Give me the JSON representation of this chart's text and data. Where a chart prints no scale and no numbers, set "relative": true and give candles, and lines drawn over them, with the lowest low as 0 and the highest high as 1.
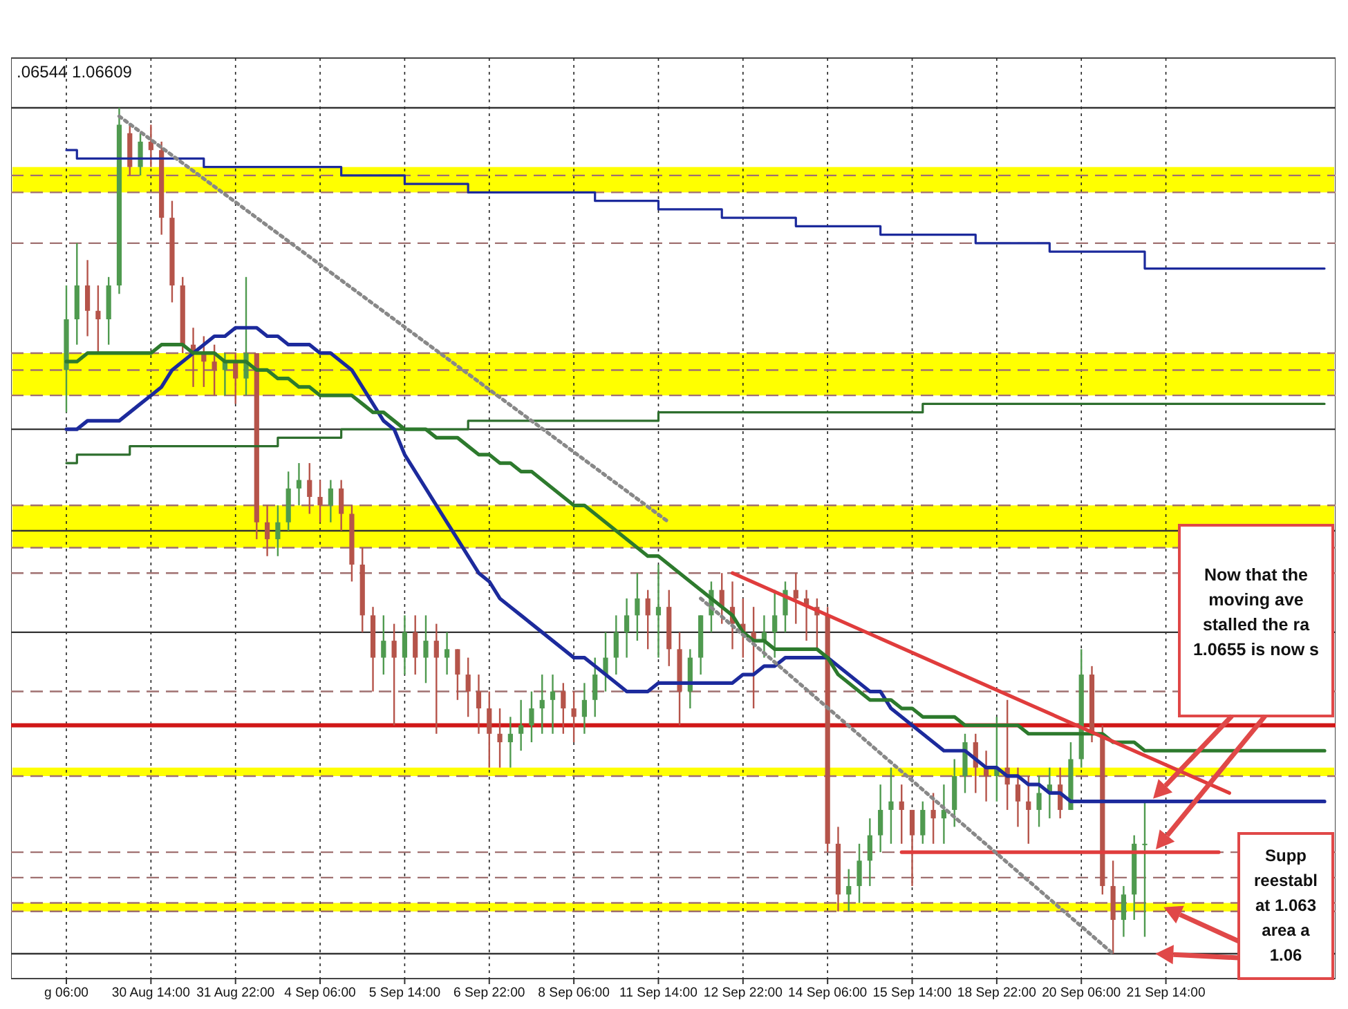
{
  "chart_data": {
    "type": "candlestick",
    "relative": true,
    "grid": "x",
    "categories": [
      "g 06:00",
      null,
      null,
      null,
      null,
      null,
      null,
      null,
      "30 Aug 14:00",
      null,
      null,
      null,
      null,
      null,
      null,
      null,
      "31 Aug 22:00",
      null,
      null,
      null,
      null,
      null,
      null,
      null,
      "4 Sep 06:00",
      null,
      null,
      null,
      null,
      null,
      null,
      null,
      "5 Sep 14:00",
      null,
      null,
      null,
      null,
      null,
      null,
      null,
      "6 Sep 22:00",
      null,
      null,
      null,
      null,
      null,
      null,
      null,
      "8 Sep 06:00",
      null,
      null,
      null,
      null,
      null,
      null,
      null,
      "11 Sep 14:00",
      null,
      null,
      null,
      null,
      null,
      null,
      null,
      "12 Sep 22:00",
      null,
      null,
      null,
      null,
      null,
      null,
      null,
      "14 Sep 06:00",
      null,
      null,
      null,
      null,
      null,
      null,
      null,
      "15 Sep 14:00",
      null,
      null,
      null,
      null,
      null,
      null,
      null,
      "18 Sep 22:00",
      null,
      null,
      null,
      null,
      null,
      null,
      null,
      "20 Sep 06:00",
      null,
      null,
      null,
      null,
      null,
      null,
      null,
      "21 Sep 14:00",
      null,
      null,
      null,
      null,
      null,
      null,
      null,
      null,
      null,
      null,
      null,
      null,
      null,
      null,
      null
    ],
    "ohlc": [
      [
        0.69,
        0.79,
        0.64,
        0.75
      ],
      [
        0.75,
        0.84,
        0.72,
        0.79
      ],
      [
        0.79,
        0.82,
        0.73,
        0.76
      ],
      [
        0.76,
        0.79,
        0.71,
        0.75
      ],
      [
        0.75,
        0.8,
        0.72,
        0.79
      ],
      [
        0.79,
        1,
        0.78,
        0.98
      ],
      [
        0.97,
        0.98,
        0.92,
        0.93
      ],
      [
        0.93,
        0.97,
        0.92,
        0.96
      ],
      [
        0.96,
        0.98,
        0.93,
        0.95
      ],
      [
        0.95,
        0.96,
        0.85,
        0.87
      ],
      [
        0.87,
        0.89,
        0.77,
        0.79
      ],
      [
        0.79,
        0.8,
        0.71,
        0.72
      ],
      [
        0.72,
        0.74,
        0.67,
        0.71
      ],
      [
        0.71,
        0.73,
        0.67,
        0.7
      ],
      [
        0.7,
        0.72,
        0.66,
        0.69
      ],
      [
        0.69,
        0.71,
        0.66,
        0.7
      ],
      [
        0.7,
        0.71,
        0.65,
        0.68
      ],
      [
        0.68,
        0.8,
        0.66,
        0.71
      ],
      [
        0.71,
        0.71,
        0.49,
        0.51
      ],
      [
        0.51,
        0.53,
        0.47,
        0.49
      ],
      [
        0.49,
        0.53,
        0.47,
        0.51
      ],
      [
        0.51,
        0.57,
        0.5,
        0.55
      ],
      [
        0.55,
        0.58,
        0.53,
        0.56
      ],
      [
        0.56,
        0.58,
        0.52,
        0.54
      ],
      [
        0.54,
        0.56,
        0.51,
        0.53
      ],
      [
        0.53,
        0.56,
        0.51,
        0.55
      ],
      [
        0.55,
        0.56,
        0.5,
        0.52
      ],
      [
        0.52,
        0.53,
        0.44,
        0.46
      ],
      [
        0.46,
        0.48,
        0.38,
        0.4
      ],
      [
        0.4,
        0.41,
        0.31,
        0.35
      ],
      [
        0.35,
        0.4,
        0.33,
        0.37
      ],
      [
        0.37,
        0.39,
        0.27,
        0.35
      ],
      [
        0.35,
        0.4,
        0.33,
        0.38
      ],
      [
        0.38,
        0.4,
        0.33,
        0.35
      ],
      [
        0.35,
        0.4,
        0.32,
        0.37
      ],
      [
        0.37,
        0.39,
        0.26,
        0.35
      ],
      [
        0.35,
        0.38,
        0.33,
        0.36
      ],
      [
        0.36,
        0.36,
        0.3,
        0.33
      ],
      [
        0.33,
        0.35,
        0.28,
        0.31
      ],
      [
        0.31,
        0.33,
        0.26,
        0.29
      ],
      [
        0.29,
        0.31,
        0.22,
        0.26
      ],
      [
        0.26,
        0.29,
        0.22,
        0.25
      ],
      [
        0.25,
        0.28,
        0.22,
        0.26
      ],
      [
        0.26,
        0.3,
        0.24,
        0.27
      ],
      [
        0.27,
        0.31,
        0.25,
        0.29
      ],
      [
        0.29,
        0.33,
        0.26,
        0.3
      ],
      [
        0.3,
        0.33,
        0.26,
        0.31
      ],
      [
        0.31,
        0.32,
        0.26,
        0.29
      ],
      [
        0.29,
        0.31,
        0.25,
        0.28
      ],
      [
        0.28,
        0.32,
        0.26,
        0.3
      ],
      [
        0.3,
        0.35,
        0.28,
        0.33
      ],
      [
        0.33,
        0.38,
        0.31,
        0.35
      ],
      [
        0.35,
        0.4,
        0.33,
        0.38
      ],
      [
        0.38,
        0.42,
        0.35,
        0.4
      ],
      [
        0.4,
        0.45,
        0.37,
        0.42
      ],
      [
        0.42,
        0.43,
        0.36,
        0.4
      ],
      [
        0.4,
        0.46,
        0.35,
        0.41
      ],
      [
        0.41,
        0.43,
        0.34,
        0.36
      ],
      [
        0.36,
        0.38,
        0.27,
        0.31
      ],
      [
        0.31,
        0.36,
        0.29,
        0.35
      ],
      [
        0.35,
        0.4,
        0.33,
        0.4
      ],
      [
        0.4,
        0.44,
        0.38,
        0.43
      ],
      [
        0.43,
        0.45,
        0.39,
        0.41
      ],
      [
        0.41,
        0.44,
        0.36,
        0.39
      ],
      [
        0.39,
        0.42,
        0.35,
        0.38
      ],
      [
        0.38,
        0.41,
        0.29,
        0.37
      ],
      [
        0.37,
        0.4,
        0.35,
        0.38
      ],
      [
        0.38,
        0.43,
        0.35,
        0.4
      ],
      [
        0.4,
        0.44,
        0.38,
        0.43
      ],
      [
        0.43,
        0.45,
        0.39,
        0.42
      ],
      [
        0.42,
        0.43,
        0.37,
        0.41
      ],
      [
        0.41,
        0.42,
        0.36,
        0.4
      ],
      [
        0.4,
        0.41,
        0.12,
        0.13
      ],
      [
        0.13,
        0.15,
        0.05,
        0.07
      ],
      [
        0.07,
        0.1,
        0.05,
        0.08
      ],
      [
        0.08,
        0.13,
        0.06,
        0.11
      ],
      [
        0.11,
        0.16,
        0.08,
        0.14
      ],
      [
        0.14,
        0.2,
        0.12,
        0.17
      ],
      [
        0.17,
        0.22,
        0.13,
        0.18
      ],
      [
        0.18,
        0.2,
        0.13,
        0.17
      ],
      [
        0.17,
        0.17,
        0.08,
        0.14
      ],
      [
        0.14,
        0.18,
        0.13,
        0.17
      ],
      [
        0.17,
        0.19,
        0.13,
        0.16
      ],
      [
        0.16,
        0.2,
        0.13,
        0.17
      ],
      [
        0.17,
        0.23,
        0.15,
        0.21
      ],
      [
        0.21,
        0.26,
        0.19,
        0.25
      ],
      [
        0.25,
        0.26,
        0.19,
        0.22
      ],
      [
        0.22,
        0.24,
        0.18,
        0.21
      ],
      [
        0.21,
        0.28,
        0.18,
        0.22
      ],
      [
        0.22,
        0.3,
        0.17,
        0.2
      ],
      [
        0.2,
        0.22,
        0.15,
        0.18
      ],
      [
        0.18,
        0.21,
        0.13,
        0.17
      ],
      [
        0.17,
        0.21,
        0.15,
        0.19
      ],
      [
        0.19,
        0.22,
        0.16,
        0.2
      ],
      [
        0.2,
        0.22,
        0.16,
        0.17
      ],
      [
        0.17,
        0.25,
        0.17,
        0.23
      ],
      [
        0.23,
        0.36,
        0.22,
        0.33
      ],
      [
        0.33,
        0.34,
        0.25,
        0.26
      ],
      [
        0.26,
        0.27,
        0.07,
        0.08
      ],
      [
        0.08,
        0.11,
        0,
        0.04
      ],
      [
        0.04,
        0.08,
        0.02,
        0.07
      ],
      [
        0.07,
        0.14,
        0.04,
        0.13
      ],
      [
        0.13,
        0.18,
        0.02,
        0.13
      ],
      null,
      null,
      null,
      null,
      null,
      null,
      null,
      null,
      null,
      null,
      null,
      null,
      null,
      null,
      null,
      null,
      null
    ],
    "colors": [
      "#4f9a4f",
      "#4f9a4f",
      "#b5544a",
      "#b5544a",
      "#4f9a4f",
      "#4f9a4f",
      "#b5544a",
      "#4f9a4f",
      "#b5544a",
      "#b5544a",
      "#b5544a",
      "#b5544a",
      "#b5544a",
      "#b5544a",
      "#b5544a",
      "#4f9a4f",
      "#b5544a",
      "#4f9a4f",
      "#b5544a",
      "#b5544a",
      "#4f9a4f",
      "#4f9a4f",
      "#4f9a4f",
      "#b5544a",
      "#b5544a",
      "#4f9a4f",
      "#b5544a",
      "#b5544a",
      "#b5544a",
      "#b5544a",
      "#4f9a4f",
      "#b5544a",
      "#4f9a4f",
      "#b5544a",
      "#4f9a4f",
      "#b5544a",
      "#4f9a4f",
      "#b5544a",
      "#b5544a",
      "#b5544a",
      "#b5544a",
      "#b5544a",
      "#4f9a4f",
      "#4f9a4f",
      "#4f9a4f",
      "#4f9a4f",
      "#4f9a4f",
      "#b5544a",
      "#b5544a",
      "#4f9a4f",
      "#4f9a4f",
      "#4f9a4f",
      "#4f9a4f",
      "#4f9a4f",
      "#4f9a4f",
      "#b5544a",
      "#4f9a4f",
      "#b5544a",
      "#b5544a",
      "#4f9a4f",
      "#4f9a4f",
      "#4f9a4f",
      "#b5544a",
      "#b5544a",
      "#b5544a",
      "#b5544a",
      "#4f9a4f",
      "#4f9a4f",
      "#4f9a4f",
      "#b5544a",
      "#b5544a",
      "#b5544a",
      "#b5544a",
      "#b5544a",
      "#4f9a4f",
      "#4f9a4f",
      "#4f9a4f",
      "#4f9a4f",
      "#4f9a4f",
      "#b5544a",
      "#b5544a",
      "#4f9a4f",
      "#b5544a",
      "#4f9a4f",
      "#4f9a4f",
      "#4f9a4f",
      "#b5544a",
      "#b5544a",
      "#4f9a4f",
      "#b5544a",
      "#b5544a",
      "#b5544a",
      "#4f9a4f",
      "#4f9a4f",
      "#b5544a",
      "#4f9a4f",
      "#4f9a4f",
      "#b5544a",
      "#b5544a",
      "#b5544a",
      "#4f9a4f",
      "#4f9a4f",
      "#4f9a4f",
      null,
      null,
      null,
      null,
      null,
      null,
      null,
      null,
      null,
      null,
      null,
      null,
      null,
      null,
      null,
      null,
      null
    ],
    "series": [
      {
        "type": "step",
        "color": "#1c2a9c",
        "values": [
          0.95,
          0.94,
          0.94,
          0.94,
          0.94,
          0.94,
          0.94,
          0.94,
          0.94,
          0.94,
          0.94,
          0.94,
          0.94,
          0.93,
          0.93,
          0.93,
          0.93,
          0.93,
          0.93,
          0.93,
          0.93,
          0.93,
          0.93,
          0.93,
          0.93,
          0.93,
          0.92,
          0.92,
          0.92,
          0.92,
          0.92,
          0.92,
          0.91,
          0.91,
          0.91,
          0.91,
          0.91,
          0.91,
          0.9,
          0.9,
          0.9,
          0.9,
          0.9,
          0.9,
          0.9,
          0.9,
          0.9,
          0.9,
          0.9,
          0.9,
          0.89,
          0.89,
          0.89,
          0.89,
          0.89,
          0.89,
          0.88,
          0.88,
          0.88,
          0.88,
          0.88,
          0.88,
          0.87,
          0.87,
          0.87,
          0.87,
          0.87,
          0.87,
          0.87,
          0.86,
          0.86,
          0.86,
          0.86,
          0.86,
          0.86,
          0.86,
          0.86,
          0.85,
          0.85,
          0.85,
          0.85,
          0.85,
          0.85,
          0.85,
          0.85,
          0.85,
          0.84,
          0.84,
          0.84,
          0.84,
          0.84,
          0.84,
          0.84,
          0.83,
          0.83,
          0.83,
          0.83,
          0.83,
          0.83,
          0.83,
          0.83,
          0.83,
          0.81,
          0.81,
          0.81,
          0.81,
          0.81,
          0.81,
          0.81,
          0.81,
          0.81,
          0.81,
          0.81,
          0.81,
          0.81,
          0.81,
          0.81,
          0.81,
          0.81,
          0.81
        ]
      },
      {
        "type": "step",
        "color": "#2d6e2d",
        "values": [
          0.58,
          0.59,
          0.59,
          0.59,
          0.59,
          0.59,
          0.6,
          0.6,
          0.6,
          0.6,
          0.6,
          0.6,
          0.6,
          0.6,
          0.6,
          0.6,
          0.6,
          0.6,
          0.6,
          0.6,
          0.61,
          0.61,
          0.61,
          0.61,
          0.61,
          0.61,
          0.62,
          0.62,
          0.62,
          0.62,
          0.62,
          0.62,
          0.62,
          0.62,
          0.62,
          0.62,
          0.62,
          0.62,
          0.63,
          0.63,
          0.63,
          0.63,
          0.63,
          0.63,
          0.63,
          0.63,
          0.63,
          0.63,
          0.63,
          0.63,
          0.63,
          0.63,
          0.63,
          0.63,
          0.63,
          0.63,
          0.64,
          0.64,
          0.64,
          0.64,
          0.64,
          0.64,
          0.64,
          0.64,
          0.64,
          0.64,
          0.64,
          0.64,
          0.64,
          0.64,
          0.64,
          0.64,
          0.64,
          0.64,
          0.64,
          0.64,
          0.64,
          0.64,
          0.64,
          0.64,
          0.64,
          0.65,
          0.65,
          0.65,
          0.65,
          0.65,
          0.65,
          0.65,
          0.65,
          0.65,
          0.65,
          0.65,
          0.65,
          0.65,
          0.65,
          0.65,
          0.65,
          0.65,
          0.65,
          0.65,
          0.65,
          0.65,
          0.65,
          0.65,
          0.65,
          0.65,
          0.65,
          0.65,
          0.65,
          0.65,
          0.65,
          0.65,
          0.65,
          0.65,
          0.65,
          0.65,
          0.65,
          0.65,
          0.65,
          0.65
        ]
      },
      {
        "type": "line",
        "color": "#1c2a9c",
        "values": [
          0.62,
          0.62,
          0.63,
          0.63,
          0.63,
          0.63,
          0.64,
          0.65,
          0.66,
          0.67,
          0.69,
          0.7,
          0.71,
          0.72,
          0.73,
          0.73,
          0.74,
          0.74,
          0.74,
          0.73,
          0.73,
          0.72,
          0.72,
          0.72,
          0.71,
          0.71,
          0.7,
          0.69,
          0.67,
          0.65,
          0.63,
          0.62,
          0.59,
          0.57,
          0.55,
          0.53,
          0.51,
          0.49,
          0.47,
          0.45,
          0.44,
          0.42,
          0.41,
          0.4,
          0.39,
          0.38,
          0.37,
          0.36,
          0.35,
          0.35,
          0.34,
          0.33,
          0.32,
          0.31,
          0.31,
          0.31,
          0.32,
          0.32,
          0.32,
          0.32,
          0.32,
          0.32,
          0.32,
          0.32,
          0.33,
          0.33,
          0.34,
          0.34,
          0.35,
          0.35,
          0.35,
          0.35,
          0.35,
          0.34,
          0.33,
          0.32,
          0.31,
          0.31,
          0.29,
          0.28,
          0.27,
          0.26,
          0.25,
          0.24,
          0.24,
          0.24,
          0.23,
          0.22,
          0.22,
          0.21,
          0.21,
          0.2,
          0.2,
          0.19,
          0.19,
          0.18,
          0.18,
          0.18,
          0.18,
          0.18,
          0.18,
          0.18,
          0.18,
          0.18,
          0.18,
          0.18,
          0.18,
          0.18,
          0.18,
          0.18,
          0.18,
          0.18,
          0.18,
          0.18,
          0.18,
          0.18,
          0.18,
          0.18,
          0.18,
          0.18
        ]
      },
      {
        "type": "line",
        "color": "#2d7a2d",
        "values": [
          0.7,
          0.7,
          0.71,
          0.71,
          0.71,
          0.71,
          0.71,
          0.71,
          0.71,
          0.72,
          0.72,
          0.72,
          0.71,
          0.71,
          0.71,
          0.7,
          0.7,
          0.7,
          0.69,
          0.69,
          0.68,
          0.68,
          0.67,
          0.67,
          0.66,
          0.66,
          0.66,
          0.66,
          0.65,
          0.64,
          0.64,
          0.63,
          0.62,
          0.62,
          0.62,
          0.61,
          0.61,
          0.61,
          0.6,
          0.59,
          0.59,
          0.58,
          0.58,
          0.57,
          0.57,
          0.56,
          0.55,
          0.54,
          0.53,
          0.53,
          0.52,
          0.51,
          0.5,
          0.49,
          0.48,
          0.47,
          0.47,
          0.46,
          0.45,
          0.44,
          0.43,
          0.42,
          0.41,
          0.4,
          0.38,
          0.37,
          0.37,
          0.36,
          0.36,
          0.36,
          0.36,
          0.36,
          0.35,
          0.33,
          0.32,
          0.31,
          0.3,
          0.3,
          0.3,
          0.29,
          0.29,
          0.28,
          0.28,
          0.28,
          0.28,
          0.27,
          0.27,
          0.27,
          0.27,
          0.27,
          0.27,
          0.26,
          0.26,
          0.26,
          0.26,
          0.26,
          0.26,
          0.26,
          0.26,
          0.25,
          0.25,
          0.25,
          0.24,
          0.24,
          0.24,
          0.24,
          0.24,
          0.24,
          0.24,
          0.24,
          0.24,
          0.24,
          0.24,
          0.24,
          0.24,
          0.24,
          0.24,
          0.24,
          0.24,
          0.24
        ]
      },
      {
        "type": "line",
        "color": "#e03c3c",
        "values": [
          null,
          null,
          null,
          null,
          null,
          null,
          null,
          null,
          null,
          null,
          null,
          null,
          null,
          null,
          null,
          null,
          null,
          null,
          null,
          null,
          null,
          null,
          null,
          null,
          null,
          null,
          null,
          null,
          null,
          null,
          null,
          null,
          null,
          null,
          null,
          null,
          null,
          null,
          null,
          null,
          null,
          null,
          null,
          null,
          null,
          null,
          null,
          null,
          null,
          null,
          null,
          null,
          null,
          null,
          null,
          null,
          null,
          null,
          null,
          null,
          null,
          null,
          null,
          0.45,
          null,
          null,
          null,
          null,
          null,
          null,
          null,
          null,
          null,
          null,
          null,
          null,
          null,
          null,
          null,
          null,
          null,
          null,
          null,
          null,
          null,
          null,
          null,
          null,
          null,
          null,
          null,
          null,
          null,
          null,
          null,
          null,
          null,
          null,
          null,
          null,
          null,
          null,
          null,
          null,
          null,
          null,
          null,
          null,
          null,
          null,
          0.19,
          null,
          null,
          null,
          null,
          null,
          null,
          null,
          null,
          null
        ]
      },
      {
        "type": "line",
        "color": "#e03c3c",
        "values": [
          null,
          null,
          null,
          null,
          null,
          null,
          null,
          null,
          null,
          null,
          null,
          null,
          null,
          null,
          null,
          null,
          null,
          null,
          null,
          null,
          null,
          null,
          null,
          null,
          null,
          null,
          null,
          null,
          null,
          null,
          null,
          null,
          null,
          null,
          null,
          null,
          null,
          null,
          null,
          null,
          null,
          null,
          null,
          null,
          null,
          null,
          null,
          null,
          null,
          null,
          null,
          null,
          null,
          null,
          null,
          null,
          null,
          null,
          null,
          null,
          null,
          null,
          null,
          null,
          null,
          null,
          null,
          null,
          null,
          null,
          null,
          null,
          null,
          null,
          null,
          null,
          null,
          null,
          null,
          0.12,
          null,
          null,
          null,
          null,
          null,
          null,
          null,
          null,
          null,
          null,
          null,
          null,
          null,
          null,
          null,
          null,
          null,
          null,
          null,
          null,
          null,
          null,
          null,
          null,
          null,
          null,
          null,
          null,
          null,
          0.12,
          null,
          null,
          null,
          null,
          null,
          null,
          null,
          null,
          null,
          null
        ]
      },
      {
        "type": "line",
        "color": "#888888",
        "line_style": "dotted",
        "values": [
          null,
          null,
          null,
          null,
          null,
          0.99,
          null,
          null,
          null,
          null,
          null,
          null,
          null,
          null,
          null,
          null,
          null,
          null,
          null,
          null,
          null,
          null,
          null,
          null,
          null,
          null,
          null,
          null,
          null,
          null,
          null,
          null,
          null,
          null,
          null,
          null,
          null,
          null,
          null,
          null,
          null,
          null,
          null,
          null,
          null,
          null,
          null,
          null,
          null,
          null,
          null,
          null,
          null,
          null,
          null,
          null,
          null,
          0.51,
          null,
          null,
          null,
          null,
          null,
          null,
          null,
          null,
          null,
          null,
          null,
          null,
          null,
          null,
          null,
          null,
          null,
          null,
          null,
          null,
          null,
          null,
          null,
          null,
          null,
          null,
          null,
          null,
          null,
          null,
          null,
          null,
          null,
          null,
          null,
          null,
          null,
          null,
          null,
          null,
          null,
          null,
          null,
          null,
          null,
          null,
          null,
          null,
          null,
          null,
          null,
          null,
          null,
          null,
          null,
          null,
          null,
          null,
          null,
          null,
          null,
          null
        ]
      },
      {
        "type": "line",
        "color": "#888888",
        "line_style": "dotted",
        "values": [
          null,
          null,
          null,
          null,
          null,
          null,
          null,
          null,
          null,
          null,
          null,
          null,
          null,
          null,
          null,
          null,
          null,
          null,
          null,
          null,
          null,
          null,
          null,
          null,
          null,
          null,
          null,
          null,
          null,
          null,
          null,
          null,
          null,
          null,
          null,
          null,
          null,
          null,
          null,
          null,
          null,
          null,
          null,
          null,
          null,
          null,
          null,
          null,
          null,
          null,
          null,
          null,
          null,
          null,
          null,
          null,
          null,
          null,
          null,
          null,
          0.42,
          null,
          null,
          null,
          null,
          null,
          null,
          null,
          null,
          null,
          null,
          null,
          null,
          null,
          null,
          null,
          null,
          null,
          null,
          null,
          null,
          null,
          null,
          null,
          null,
          null,
          null,
          null,
          null,
          null,
          null,
          null,
          null,
          null,
          null,
          null,
          null,
          null,
          null,
          0,
          null,
          null,
          null,
          null,
          null,
          null,
          null,
          null,
          null,
          null,
          null,
          null,
          null,
          null,
          null,
          null,
          null,
          null,
          null,
          null
        ]
      }
    ],
    "bands": [
      {
        "axis": "y",
        "from": 0.9,
        "to": 0.93,
        "color": "#ffff00"
      },
      {
        "axis": "y",
        "from": 0.66,
        "to": 0.71,
        "color": "#ffff00"
      },
      {
        "axis": "y",
        "from": 0.48,
        "to": 0.53,
        "color": "#ffff00"
      },
      {
        "axis": "y",
        "from": 0.21,
        "to": 0.22,
        "color": "#ffff00"
      },
      {
        "axis": "y",
        "from": 0.05,
        "to": 0.06,
        "color": "#ffff00"
      }
    ],
    "ref_lines": [
      {
        "axis": "y",
        "value": 1,
        "color": "#333333",
        "line_style": "solid"
      },
      {
        "axis": "y",
        "value": 0.62,
        "color": "#333333",
        "line_style": "solid"
      },
      {
        "axis": "y",
        "value": 0.5,
        "color": "#333333",
        "line_style": "solid"
      },
      {
        "axis": "y",
        "value": 0.38,
        "color": "#333333",
        "line_style": "solid"
      },
      {
        "axis": "y",
        "value": 0,
        "color": "#333333",
        "line_style": "solid"
      },
      {
        "axis": "y",
        "value": 0.27,
        "color": "#d01818",
        "line_style": "solid"
      },
      {
        "axis": "y",
        "value": 0.92,
        "color": "#a07070",
        "line_style": "dashed"
      },
      {
        "axis": "y",
        "value": 0.9,
        "color": "#a07070",
        "line_style": "dashed"
      },
      {
        "axis": "y",
        "value": 0.84,
        "color": "#a07070",
        "line_style": "dashed"
      },
      {
        "axis": "y",
        "value": 0.71,
        "color": "#a07070",
        "line_style": "dashed"
      },
      {
        "axis": "y",
        "value": 0.69,
        "color": "#a07070",
        "line_style": "dashed"
      },
      {
        "axis": "y",
        "value": 0.66,
        "color": "#a07070",
        "line_style": "dashed"
      },
      {
        "axis": "y",
        "value": 0.53,
        "color": "#a07070",
        "line_style": "dashed"
      },
      {
        "axis": "y",
        "value": 0.48,
        "color": "#a07070",
        "line_style": "dashed"
      },
      {
        "axis": "y",
        "value": 0.45,
        "color": "#a07070",
        "line_style": "dashed"
      },
      {
        "axis": "y",
        "value": 0.31,
        "color": "#a07070",
        "line_style": "dashed"
      },
      {
        "axis": "y",
        "value": 0.21,
        "color": "#a07070",
        "line_style": "dashed"
      },
      {
        "axis": "y",
        "value": 0.12,
        "color": "#a07070",
        "line_style": "dashed"
      },
      {
        "axis": "y",
        "value": 0.09,
        "color": "#a07070",
        "line_style": "dashed"
      },
      {
        "axis": "y",
        "value": 0.06,
        "color": "#a07070",
        "line_style": "dashed"
      },
      {
        "axis": "y",
        "value": 0.05,
        "color": "#a07070",
        "line_style": "dashed"
      }
    ],
    "annotations": [
      ".06544 1.06609",
      "Now that the\nmoving ave\nstalled the ra\n1.0655 is now s",
      "Supp\nreestabl\nat 1.063\narea a\n1.06"
    ]
  }
}
